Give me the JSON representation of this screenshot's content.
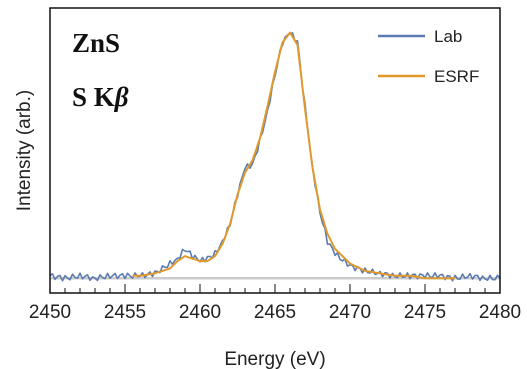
{
  "chart_data": {
    "type": "line",
    "xlabel": "Energy (eV)",
    "ylabel": "Intensity (arb.)",
    "xlim": [
      2450,
      2480
    ],
    "ylim": [
      -0.06,
      1.1
    ],
    "xticks": [
      "2450",
      "2455",
      "2460",
      "2465",
      "2470",
      "2475",
      "2480"
    ],
    "annotations": [
      "ZnS",
      "S K",
      "β"
    ],
    "legend_position": "top-right",
    "baseline": 0,
    "series": [
      {
        "name": "Lab",
        "color": "#5b7bb0",
        "x": [
          2450,
          2451,
          2452,
          2453,
          2454,
          2455,
          2456,
          2457,
          2458,
          2458.5,
          2459,
          2459.5,
          2460,
          2460.5,
          2461,
          2461.5,
          2462,
          2462.5,
          2463,
          2463.5,
          2464,
          2464.5,
          2465,
          2465.5,
          2466,
          2466.5,
          2467,
          2467.5,
          2468,
          2468.5,
          2469,
          2470,
          2471,
          2472,
          2473,
          2474,
          2475,
          2476,
          2477,
          2478,
          2479,
          2480
        ],
        "y": [
          0.01,
          0.0,
          0.01,
          0.0,
          0.01,
          0.01,
          0.01,
          0.02,
          0.06,
          0.08,
          0.12,
          0.09,
          0.07,
          0.08,
          0.1,
          0.15,
          0.22,
          0.34,
          0.45,
          0.46,
          0.56,
          0.68,
          0.83,
          0.96,
          1.0,
          0.96,
          0.7,
          0.45,
          0.27,
          0.15,
          0.1,
          0.05,
          0.03,
          0.02,
          0.01,
          0.01,
          0.01,
          0.01,
          0.0,
          0.01,
          0.0,
          0.0
        ]
      },
      {
        "name": "ESRF",
        "color": "#e09a2b",
        "x": [
          2455.5,
          2456,
          2457,
          2458,
          2458.5,
          2459,
          2459.5,
          2460,
          2460.5,
          2461,
          2461.5,
          2462,
          2462.5,
          2463,
          2463.5,
          2464,
          2464.5,
          2465,
          2465.5,
          2466,
          2466.5,
          2467,
          2467.5,
          2468,
          2468.5,
          2469,
          2470,
          2471,
          2472,
          2473,
          2474,
          2475,
          2476,
          2477
        ],
        "y": [
          0.01,
          0.01,
          0.02,
          0.04,
          0.07,
          0.09,
          0.08,
          0.07,
          0.07,
          0.09,
          0.14,
          0.22,
          0.34,
          0.43,
          0.48,
          0.57,
          0.7,
          0.84,
          0.96,
          1.0,
          0.95,
          0.69,
          0.45,
          0.28,
          0.18,
          0.12,
          0.06,
          0.03,
          0.02,
          0.01,
          0.01,
          0.0,
          0.0,
          0.0
        ]
      }
    ]
  }
}
